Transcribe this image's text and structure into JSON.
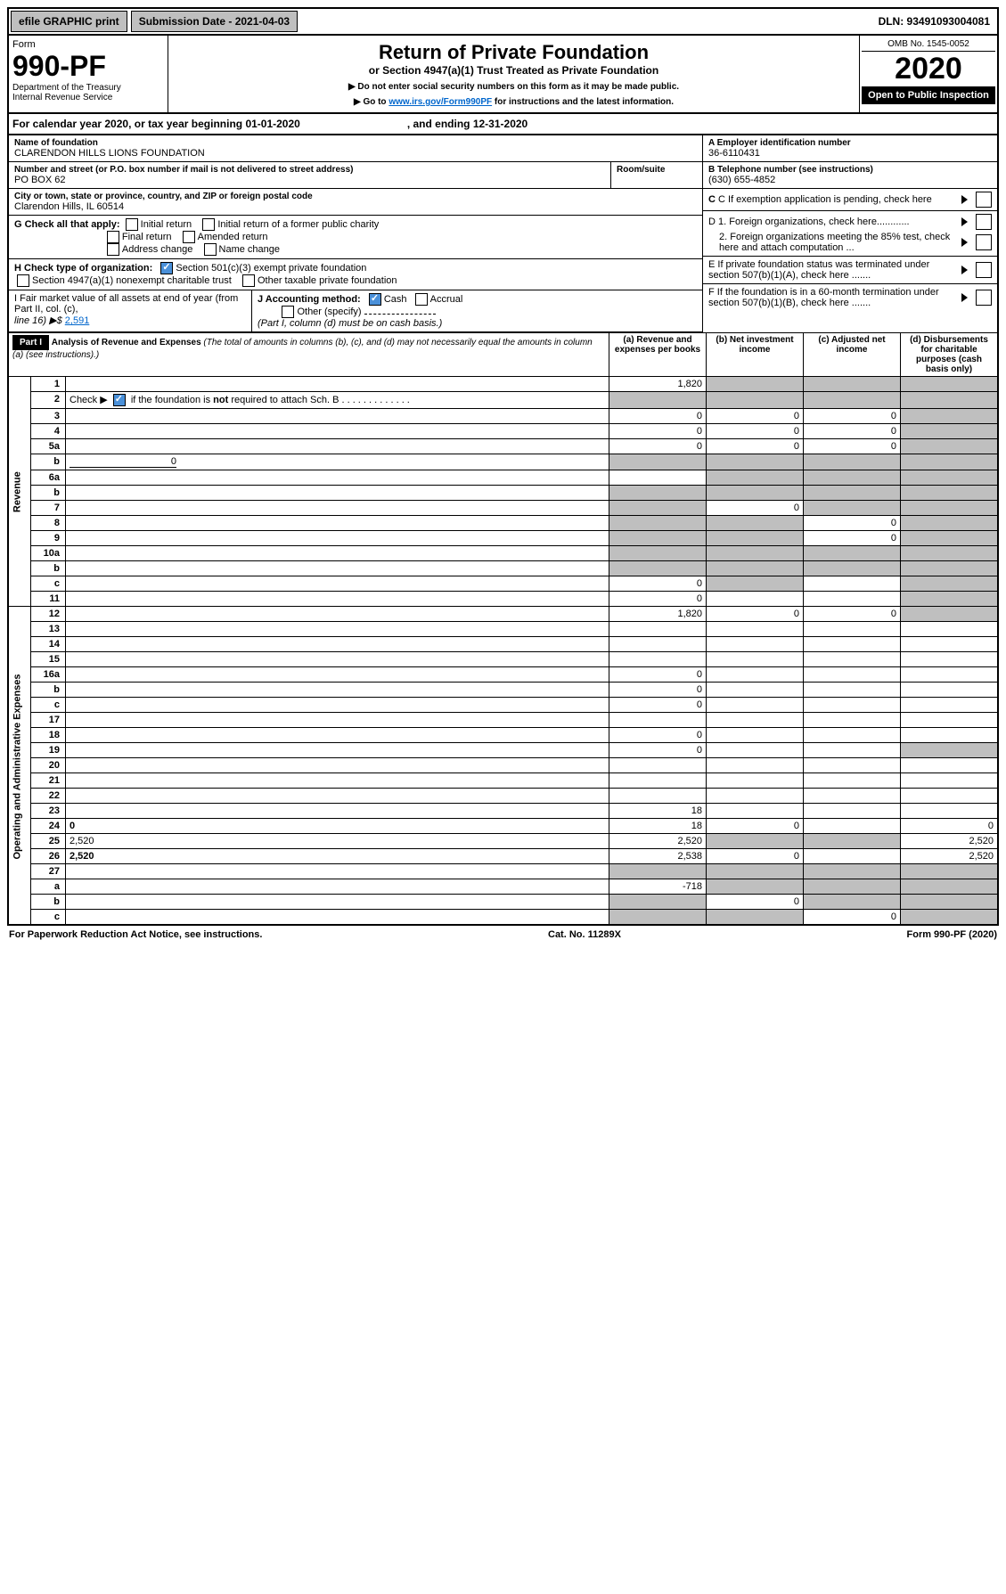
{
  "topbar": {
    "efile": "efile GRAPHIC print",
    "sub": "Submission Date - 2021-04-03",
    "dln": "DLN: 93491093004081"
  },
  "header": {
    "form": "Form",
    "formnum": "990-PF",
    "dept": "Department of the Treasury",
    "irs": "Internal Revenue Service",
    "title": "Return of Private Foundation",
    "sub": "or Section 4947(a)(1) Trust Treated as Private Foundation",
    "note1": "▶ Do not enter social security numbers on this form as it may be made public.",
    "note2": "▶ Go to ",
    "link": "www.irs.gov/Form990PF",
    "note3": " for instructions and the latest information.",
    "omb": "OMB No. 1545-0052",
    "year": "2020",
    "open": "Open to Public Inspection"
  },
  "cal": {
    "text": "For calendar year 2020, or tax year beginning 01-01-2020",
    "end": ", and ending 12-31-2020"
  },
  "id": {
    "name_lbl": "Name of foundation",
    "name": "CLARENDON HILLS LIONS FOUNDATION",
    "addr_lbl": "Number and street (or P.O. box number if mail is not delivered to street address)",
    "addr": "PO BOX 62",
    "room": "Room/suite",
    "city_lbl": "City or town, state or province, country, and ZIP or foreign postal code",
    "city": "Clarendon Hills, IL  60514",
    "a_lbl": "A Employer identification number",
    "a": "36-6110431",
    "b_lbl": "B Telephone number (see instructions)",
    "b": "(630) 655-4852",
    "c": "C If exemption application is pending, check here",
    "d1": "D 1. Foreign organizations, check here............",
    "d2": "2. Foreign organizations meeting the 85% test, check here and attach computation ...",
    "e": "E  If private foundation status was terminated under section 507(b)(1)(A), check here .......",
    "f": "F  If the foundation is in a 60-month termination under section 507(b)(1)(B), check here ......."
  },
  "g": {
    "lbl": "G Check all that apply:",
    "items": [
      "Initial return",
      "Initial return of a former public charity",
      "Final return",
      "Amended return",
      "Address change",
      "Name change"
    ]
  },
  "h": {
    "lbl": "H Check type of organization:",
    "s501": "Section 501(c)(3) exempt private foundation",
    "s4947": "Section 4947(a)(1) nonexempt charitable trust",
    "other": "Other taxable private foundation"
  },
  "i": {
    "lbl": "I Fair market value of all assets at end of year (from Part II, col. (c),",
    "line": "line 16) ▶$ ",
    "val": "2,591"
  },
  "j": {
    "lbl": "J Accounting method:",
    "cash": "Cash",
    "accrual": "Accrual",
    "other": "Other (specify)",
    "note": "(Part I, column (d) must be on cash basis.)"
  },
  "part1": {
    "hdr": "Part I",
    "title": "Analysis of Revenue and Expenses",
    "sub": "(The total of amounts in columns (b), (c), and (d) may not necessarily equal the amounts in column (a) (see instructions).)",
    "cols": [
      "(a)   Revenue and expenses per books",
      "(b)  Net investment income",
      "(c)  Adjusted net income",
      "(d)  Disbursements for charitable purposes (cash basis only)"
    ],
    "sections": {
      "rev": "Revenue",
      "exp": "Operating and Administrative Expenses"
    },
    "rows": [
      {
        "n": "1",
        "d": "",
        "a": "1,820",
        "b": "",
        "c": "",
        "sb": true,
        "sc": true,
        "sd": true
      },
      {
        "n": "2",
        "d": "",
        "a": "",
        "b": "",
        "c": "",
        "sa": true,
        "sb": true,
        "sc": true,
        "sd": true,
        "bold": false,
        "checked": true
      },
      {
        "n": "3",
        "d": "",
        "a": "0",
        "b": "0",
        "c": "0",
        "sd": true
      },
      {
        "n": "4",
        "d": "",
        "a": "0",
        "b": "0",
        "c": "0",
        "sd": true
      },
      {
        "n": "5a",
        "d": "",
        "a": "0",
        "b": "0",
        "c": "0",
        "sd": true
      },
      {
        "n": "b",
        "d": "",
        "a": "",
        "b": "",
        "c": "",
        "sa": true,
        "sb": true,
        "sc": true,
        "sd": true,
        "inline": "0"
      },
      {
        "n": "6a",
        "d": "",
        "a": "",
        "b": "",
        "c": "",
        "sb": true,
        "sc": true,
        "sd": true
      },
      {
        "n": "b",
        "d": "",
        "a": "",
        "b": "",
        "c": "",
        "sa": true,
        "sb": true,
        "sc": true,
        "sd": true
      },
      {
        "n": "7",
        "d": "",
        "a": "",
        "b": "0",
        "c": "",
        "sa": true,
        "sc": true,
        "sd": true
      },
      {
        "n": "8",
        "d": "",
        "a": "",
        "b": "",
        "c": "0",
        "sa": true,
        "sb": true,
        "sd": true
      },
      {
        "n": "9",
        "d": "",
        "a": "",
        "b": "",
        "c": "0",
        "sa": true,
        "sb": true,
        "sd": true
      },
      {
        "n": "10a",
        "d": "",
        "a": "",
        "b": "",
        "c": "",
        "sa": true,
        "sb": true,
        "sc": true,
        "sd": true
      },
      {
        "n": "b",
        "d": "",
        "a": "",
        "b": "",
        "c": "",
        "sa": true,
        "sb": true,
        "sc": true,
        "sd": true
      },
      {
        "n": "c",
        "d": "",
        "a": "0",
        "b": "",
        "c": "",
        "sb": true,
        "sd": true
      },
      {
        "n": "11",
        "d": "",
        "a": "0",
        "b": "",
        "c": "",
        "sd": true
      },
      {
        "n": "12",
        "d": "",
        "a": "1,820",
        "b": "0",
        "c": "0",
        "sd": true,
        "bold": true
      },
      {
        "n": "13",
        "d": "",
        "a": "",
        "b": "",
        "c": "",
        "sec": "exp"
      },
      {
        "n": "14",
        "d": "",
        "a": "",
        "b": "",
        "c": ""
      },
      {
        "n": "15",
        "d": "",
        "a": "",
        "b": "",
        "c": ""
      },
      {
        "n": "16a",
        "d": "",
        "a": "0",
        "b": "",
        "c": ""
      },
      {
        "n": "b",
        "d": "",
        "a": "0",
        "b": "",
        "c": ""
      },
      {
        "n": "c",
        "d": "",
        "a": "0",
        "b": "",
        "c": ""
      },
      {
        "n": "17",
        "d": "",
        "a": "",
        "b": "",
        "c": ""
      },
      {
        "n": "18",
        "d": "",
        "a": "0",
        "b": "",
        "c": ""
      },
      {
        "n": "19",
        "d": "",
        "a": "0",
        "b": "",
        "c": "",
        "sd": true
      },
      {
        "n": "20",
        "d": "",
        "a": "",
        "b": "",
        "c": ""
      },
      {
        "n": "21",
        "d": "",
        "a": "",
        "b": "",
        "c": ""
      },
      {
        "n": "22",
        "d": "",
        "a": "",
        "b": "",
        "c": ""
      },
      {
        "n": "23",
        "d": "",
        "a": "18",
        "b": "",
        "c": ""
      },
      {
        "n": "24",
        "d": "0",
        "a": "18",
        "b": "0",
        "c": "",
        "bold": true
      },
      {
        "n": "25",
        "d": "2,520",
        "a": "2,520",
        "b": "",
        "c": "",
        "sb": true,
        "sc": true
      },
      {
        "n": "26",
        "d": "2,520",
        "a": "2,538",
        "b": "0",
        "c": "",
        "bold": true
      },
      {
        "n": "27",
        "d": "",
        "a": "",
        "b": "",
        "c": "",
        "sa": true,
        "sb": true,
        "sc": true,
        "sd": true
      },
      {
        "n": "a",
        "d": "",
        "a": "-718",
        "b": "",
        "c": "",
        "sb": true,
        "sc": true,
        "sd": true,
        "bold": true
      },
      {
        "n": "b",
        "d": "",
        "a": "",
        "b": "0",
        "c": "",
        "sa": true,
        "sc": true,
        "sd": true,
        "bold": true
      },
      {
        "n": "c",
        "d": "",
        "a": "",
        "b": "",
        "c": "0",
        "sa": true,
        "sb": true,
        "sd": true,
        "bold": true
      }
    ]
  },
  "footer": {
    "l": "For Paperwork Reduction Act Notice, see instructions.",
    "c": "Cat. No. 11289X",
    "r": "Form 990-PF (2020)"
  }
}
